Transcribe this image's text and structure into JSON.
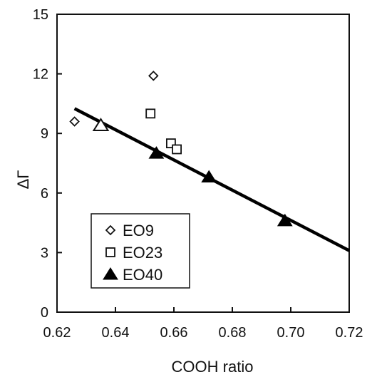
{
  "chart_data": {
    "type": "scatter",
    "xlabel": "COOH ratio",
    "ylabel": "ΔΓ",
    "xlim": [
      0.62,
      0.72
    ],
    "ylim": [
      0,
      15
    ],
    "x_ticks": [
      "0.62",
      "0.64",
      "0.66",
      "0.68",
      "0.70",
      "0.72"
    ],
    "y_ticks": [
      "0",
      "3",
      "6",
      "9",
      "12",
      "15"
    ],
    "x_tick_values": [
      0.62,
      0.64,
      0.66,
      0.68,
      0.7,
      0.72
    ],
    "y_tick_values": [
      0,
      3,
      6,
      9,
      12,
      15
    ],
    "grid": false,
    "legend_position": "bottom-left",
    "series": [
      {
        "name": "EO9",
        "marker": "diamond-open",
        "points": [
          {
            "x": 0.626,
            "y": 9.6
          },
          {
            "x": 0.653,
            "y": 11.9
          }
        ]
      },
      {
        "name": "EO23",
        "marker": "square-open",
        "points": [
          {
            "x": 0.652,
            "y": 10.0
          },
          {
            "x": 0.659,
            "y": 8.5
          },
          {
            "x": 0.661,
            "y": 8.2
          }
        ]
      },
      {
        "name": "EO40",
        "marker": "triangle-filled",
        "points": [
          {
            "x": 0.635,
            "y": 9.4
          },
          {
            "x": 0.654,
            "y": 8.0
          },
          {
            "x": 0.672,
            "y": 6.8
          },
          {
            "x": 0.698,
            "y": 4.6
          }
        ]
      }
    ],
    "fit_line": {
      "x": [
        0.626,
        0.72
      ],
      "y": [
        10.25,
        3.1
      ]
    }
  }
}
